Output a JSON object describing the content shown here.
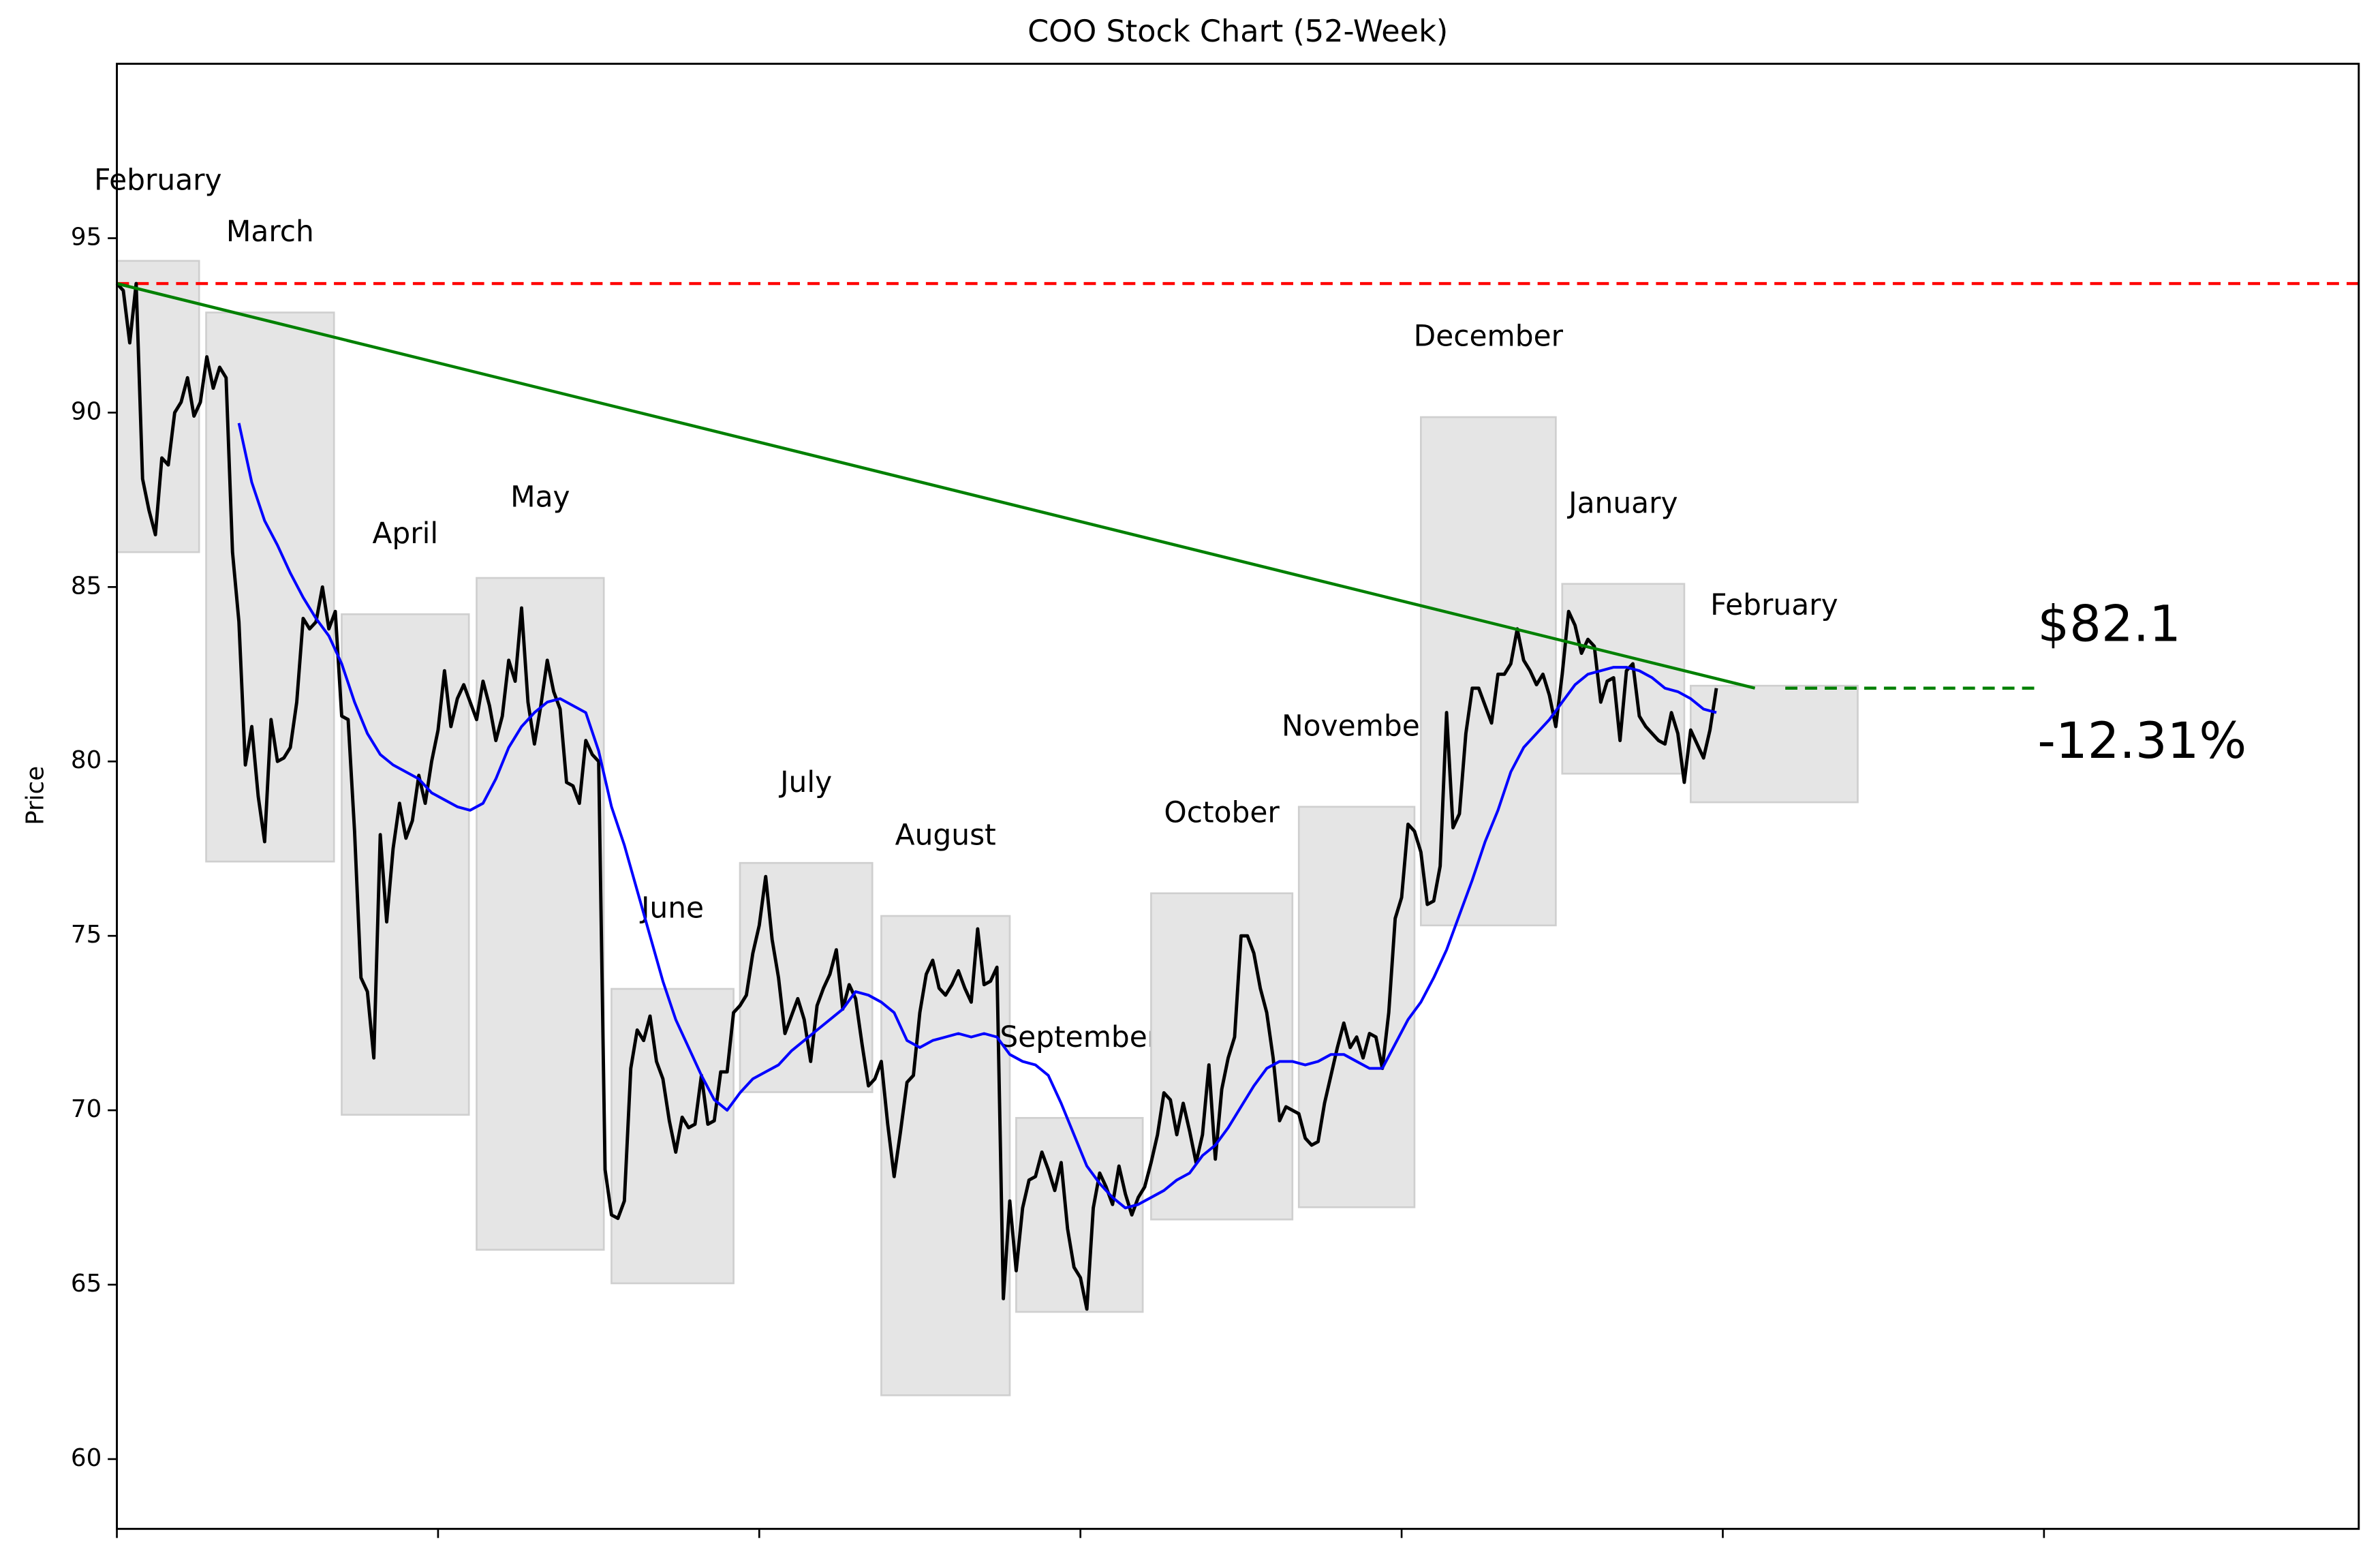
{
  "chart_data": {
    "type": "line",
    "title": "COO Stock Chart (52-Week)",
    "y_label": "Price",
    "xlim": [
      0,
      349
    ],
    "ylim": [
      58,
      100
    ],
    "xticks": [
      0,
      50,
      100,
      150,
      200,
      250,
      300
    ],
    "yticks": [
      60,
      65,
      70,
      75,
      80,
      85,
      90,
      95
    ],
    "series": [
      {
        "color": "#000000",
        "x": [
          0,
          1,
          2,
          3,
          4,
          5,
          6,
          7,
          8,
          9,
          10,
          11,
          12,
          13,
          14,
          15,
          16,
          17,
          18,
          19,
          20,
          21,
          22,
          23,
          24,
          25,
          26,
          27,
          28,
          29,
          30,
          31,
          32,
          33,
          34,
          35,
          36,
          37,
          38,
          39,
          40,
          41,
          42,
          43,
          44,
          45,
          46,
          47,
          48,
          49,
          50,
          51,
          52,
          53,
          54,
          55,
          56,
          57,
          58,
          59,
          60,
          61,
          62,
          63,
          64,
          65,
          66,
          67,
          68,
          69,
          70,
          71,
          72,
          73,
          74,
          75,
          76,
          77,
          78,
          79,
          80,
          81,
          82,
          83,
          84,
          85,
          86,
          87,
          88,
          89,
          90,
          91,
          92,
          93,
          94,
          95,
          96,
          97,
          98,
          99,
          100,
          101,
          102,
          103,
          104,
          105,
          106,
          107,
          108,
          109,
          110,
          111,
          112,
          113,
          114,
          115,
          116,
          117,
          118,
          119,
          120,
          121,
          122,
          123,
          124,
          125,
          126,
          127,
          128,
          129,
          130,
          131,
          132,
          133,
          134,
          135,
          136,
          137,
          138,
          139,
          140,
          141,
          142,
          143,
          144,
          145,
          146,
          147,
          148,
          149,
          150,
          151,
          152,
          153,
          154,
          155,
          156,
          157,
          158,
          159,
          160,
          161,
          162,
          163,
          164,
          165,
          166,
          167,
          168,
          169,
          170,
          171,
          172,
          173,
          174,
          175,
          176,
          177,
          178,
          179,
          180,
          181,
          182,
          183,
          184,
          185,
          186,
          187,
          188,
          189,
          190,
          191,
          192,
          193,
          194,
          195,
          196,
          197,
          198,
          199,
          200,
          201,
          202,
          203,
          204,
          205,
          206,
          207,
          208,
          209,
          210,
          211,
          212,
          213,
          214,
          215,
          216,
          217,
          218,
          219,
          220,
          221,
          222,
          223,
          224,
          225,
          226,
          227,
          228,
          229,
          230,
          231,
          232,
          233,
          234,
          235,
          236,
          237,
          238,
          239,
          240,
          241,
          242,
          243,
          244,
          245,
          246,
          247,
          248,
          249
        ],
        "values": [
          93.7,
          93.5,
          92.0,
          93.7,
          88.1,
          87.2,
          86.5,
          88.7,
          88.5,
          90.0,
          90.3,
          91.0,
          89.9,
          90.3,
          91.6,
          90.7,
          91.3,
          91.0,
          86.0,
          84.0,
          79.9,
          81.0,
          79.0,
          77.7,
          81.2,
          80.0,
          80.1,
          80.4,
          81.7,
          84.1,
          83.8,
          84.0,
          85.0,
          83.8,
          84.3,
          81.3,
          81.2,
          78.0,
          73.8,
          73.4,
          71.5,
          77.9,
          75.4,
          77.5,
          78.8,
          77.8,
          78.3,
          79.6,
          78.8,
          80.0,
          80.9,
          82.6,
          81.0,
          81.8,
          82.2,
          81.7,
          81.2,
          82.3,
          81.6,
          80.6,
          81.3,
          82.9,
          82.3,
          84.4,
          81.7,
          80.5,
          81.6,
          82.9,
          82.0,
          81.5,
          79.4,
          79.3,
          78.8,
          80.6,
          80.2,
          80.0,
          68.3,
          67.0,
          66.9,
          67.4,
          71.2,
          72.3,
          72.0,
          72.7,
          71.4,
          70.9,
          69.7,
          68.8,
          69.8,
          69.5,
          69.6,
          71.0,
          69.6,
          69.7,
          71.1,
          71.1,
          72.8,
          73.0,
          73.3,
          74.5,
          75.3,
          76.7,
          74.9,
          73.8,
          72.2,
          72.7,
          73.2,
          72.6,
          71.4,
          73.0,
          73.5,
          73.9,
          74.6,
          72.9,
          73.6,
          73.2,
          71.9,
          70.7,
          70.9,
          71.4,
          69.6,
          68.1,
          69.4,
          70.8,
          71.0,
          72.8,
          73.9,
          74.3,
          73.5,
          73.3,
          73.6,
          74.0,
          73.5,
          73.1,
          75.2,
          73.6,
          73.7,
          74.1,
          64.6,
          67.4,
          65.4,
          67.2,
          68.0,
          68.1,
          68.8,
          68.3,
          67.7,
          68.5,
          66.6,
          65.5,
          65.2,
          64.3,
          67.2,
          68.2,
          67.8,
          67.3,
          68.4,
          67.6,
          67.0,
          67.5,
          67.8,
          68.5,
          69.3,
          70.5,
          70.3,
          69.3,
          70.2,
          69.4,
          68.5,
          69.3,
          71.3,
          68.6,
          70.6,
          71.5,
          72.1,
          75.0,
          75.0,
          74.5,
          73.5,
          72.8,
          71.5,
          69.7,
          70.1,
          70.0,
          69.9,
          69.2,
          69.0,
          69.1,
          70.2,
          71.0,
          71.8,
          72.5,
          71.8,
          72.1,
          71.5,
          72.2,
          72.1,
          71.2,
          72.8,
          75.5,
          76.1,
          78.2,
          78.0,
          77.4,
          75.9,
          76.0,
          77.0,
          81.4,
          78.1,
          78.5,
          80.8,
          82.1,
          82.1,
          81.6,
          81.1,
          82.5,
          82.5,
          82.8,
          83.8,
          82.9,
          82.6,
          82.2,
          82.5,
          81.9,
          81.0,
          82.5,
          84.3,
          83.9,
          83.1,
          83.5,
          83.3,
          81.7,
          82.3,
          82.4,
          80.6,
          82.6,
          82.8,
          81.3,
          81.0,
          80.8,
          80.6,
          80.5,
          81.4,
          80.8,
          79.4,
          80.9,
          80.5,
          80.1,
          80.9,
          82.1
        ]
      },
      {
        "color": "#0000ff",
        "x": [
          19,
          21,
          23,
          25,
          27,
          29,
          31,
          33,
          35,
          37,
          39,
          41,
          43,
          45,
          47,
          49,
          51,
          53,
          55,
          57,
          59,
          61,
          63,
          65,
          67,
          69,
          71,
          73,
          75,
          77,
          79,
          81,
          83,
          85,
          87,
          89,
          91,
          93,
          95,
          97,
          99,
          101,
          103,
          105,
          107,
          109,
          111,
          113,
          115,
          117,
          119,
          121,
          123,
          125,
          127,
          129,
          131,
          133,
          135,
          137,
          139,
          141,
          143,
          145,
          147,
          149,
          151,
          153,
          155,
          157,
          159,
          161,
          163,
          165,
          167,
          169,
          171,
          173,
          175,
          177,
          179,
          181,
          183,
          185,
          187,
          189,
          191,
          193,
          195,
          197,
          199,
          201,
          203,
          205,
          207,
          209,
          211,
          213,
          215,
          217,
          219,
          221,
          223,
          225,
          227,
          229,
          231,
          233,
          235,
          237,
          239,
          241,
          243,
          245,
          247,
          249
        ],
        "values": [
          89.7,
          88.0,
          86.9,
          86.2,
          85.4,
          84.7,
          84.1,
          83.6,
          82.8,
          81.7,
          80.8,
          80.2,
          79.9,
          79.7,
          79.5,
          79.1,
          78.9,
          78.7,
          78.6,
          78.8,
          79.5,
          80.4,
          81.0,
          81.4,
          81.7,
          81.8,
          81.6,
          81.4,
          80.3,
          78.7,
          77.6,
          76.3,
          75.0,
          73.7,
          72.6,
          71.8,
          71.0,
          70.3,
          70.0,
          70.5,
          70.9,
          71.1,
          71.3,
          71.7,
          72.0,
          72.3,
          72.6,
          72.9,
          73.4,
          73.3,
          73.1,
          72.8,
          72.0,
          71.8,
          72.0,
          72.1,
          72.2,
          72.1,
          72.2,
          72.1,
          71.6,
          71.4,
          71.3,
          71.0,
          70.2,
          69.3,
          68.4,
          67.9,
          67.5,
          67.2,
          67.3,
          67.5,
          67.7,
          68.0,
          68.2,
          68.7,
          69.0,
          69.5,
          70.1,
          70.7,
          71.2,
          71.4,
          71.4,
          71.3,
          71.4,
          71.6,
          71.6,
          71.4,
          71.2,
          71.2,
          71.9,
          72.6,
          73.1,
          73.8,
          74.6,
          75.6,
          76.6,
          77.7,
          78.6,
          79.7,
          80.4,
          80.8,
          81.2,
          81.7,
          82.2,
          82.5,
          82.6,
          82.7,
          82.7,
          82.6,
          82.4,
          82.1,
          82.0,
          81.8,
          81.5,
          81.4
        ]
      }
    ],
    "monthly_ranges": [
      {
        "label": "February",
        "start": 0,
        "end": 12.8,
        "low": 86.0,
        "high": 94.35
      },
      {
        "label": "March",
        "start": 13.9,
        "end": 33.8,
        "low": 77.13,
        "high": 92.87
      },
      {
        "label": "April",
        "start": 35,
        "end": 54.8,
        "low": 69.87,
        "high": 84.22
      },
      {
        "label": "May",
        "start": 56,
        "end": 75.8,
        "low": 66.0,
        "high": 85.26
      },
      {
        "label": "June",
        "start": 77,
        "end": 96,
        "low": 65.04,
        "high": 73.48
      },
      {
        "label": "July",
        "start": 97,
        "end": 117.6,
        "low": 70.52,
        "high": 77.09
      },
      {
        "label": "August",
        "start": 119,
        "end": 139,
        "low": 61.83,
        "high": 75.57
      },
      {
        "label": "September",
        "start": 140,
        "end": 159.7,
        "low": 64.22,
        "high": 69.78
      },
      {
        "label": "October",
        "start": 161,
        "end": 183,
        "low": 66.87,
        "high": 76.22
      },
      {
        "label": "November",
        "start": 184,
        "end": 202,
        "low": 67.22,
        "high": 78.7
      },
      {
        "label": "December",
        "start": 203,
        "end": 224,
        "low": 75.3,
        "high": 89.87
      },
      {
        "label": "January",
        "start": 225,
        "end": 244,
        "low": 79.65,
        "high": 85.09
      },
      {
        "label": "February",
        "start": 245,
        "end": 271,
        "low": 78.83,
        "high": 82.17
      }
    ],
    "high_line": {
      "value": 93.7,
      "color": "#ff0000"
    },
    "trend_line": {
      "x": [
        0,
        255
      ],
      "values": [
        93.7,
        82.1
      ],
      "color": "#008000"
    },
    "projection": {
      "x": [
        255,
        299
      ],
      "value": 82.1,
      "color": "#008000"
    },
    "annotations": [
      "$82.1",
      "-12.31%"
    ],
    "annotation_color": "#0000ff"
  }
}
